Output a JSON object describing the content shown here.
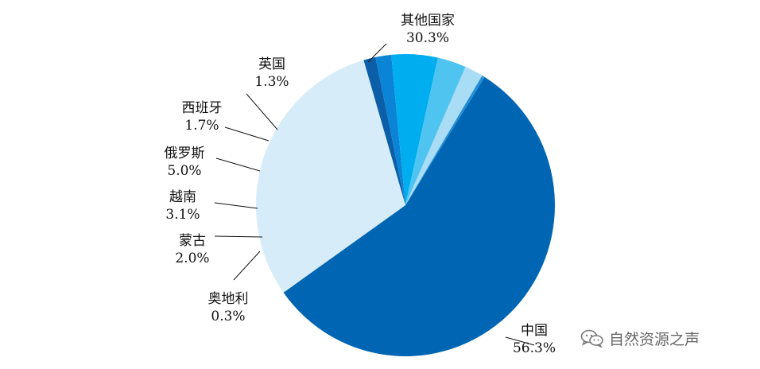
{
  "chart_data": {
    "type": "pie",
    "slices": [
      {
        "label": "中国",
        "value_label": "56.3%",
        "value": 56.3,
        "color": "#0066b3"
      },
      {
        "label": "其他国家",
        "value_label": "30.3%",
        "value": 30.3,
        "color": "#d6ecf9"
      },
      {
        "label": "英国",
        "value_label": "1.3%",
        "value": 1.3,
        "color": "#0b5fa8"
      },
      {
        "label": "西班牙",
        "value_label": "1.7%",
        "value": 1.7,
        "color": "#0c84d6"
      },
      {
        "label": "俄罗斯",
        "value_label": "5.0%",
        "value": 5.0,
        "color": "#00aeef"
      },
      {
        "label": "越南",
        "value_label": "3.1%",
        "value": 3.1,
        "color": "#4fc4f1"
      },
      {
        "label": "蒙古",
        "value_label": "2.0%",
        "value": 2.0,
        "color": "#a9dcf5"
      },
      {
        "label": "奥地利",
        "value_label": "0.3%",
        "value": 0.3,
        "color": "#1f8fd8"
      }
    ]
  },
  "watermark": {
    "text": "自然资源之声",
    "icon": "wechat-icon"
  }
}
